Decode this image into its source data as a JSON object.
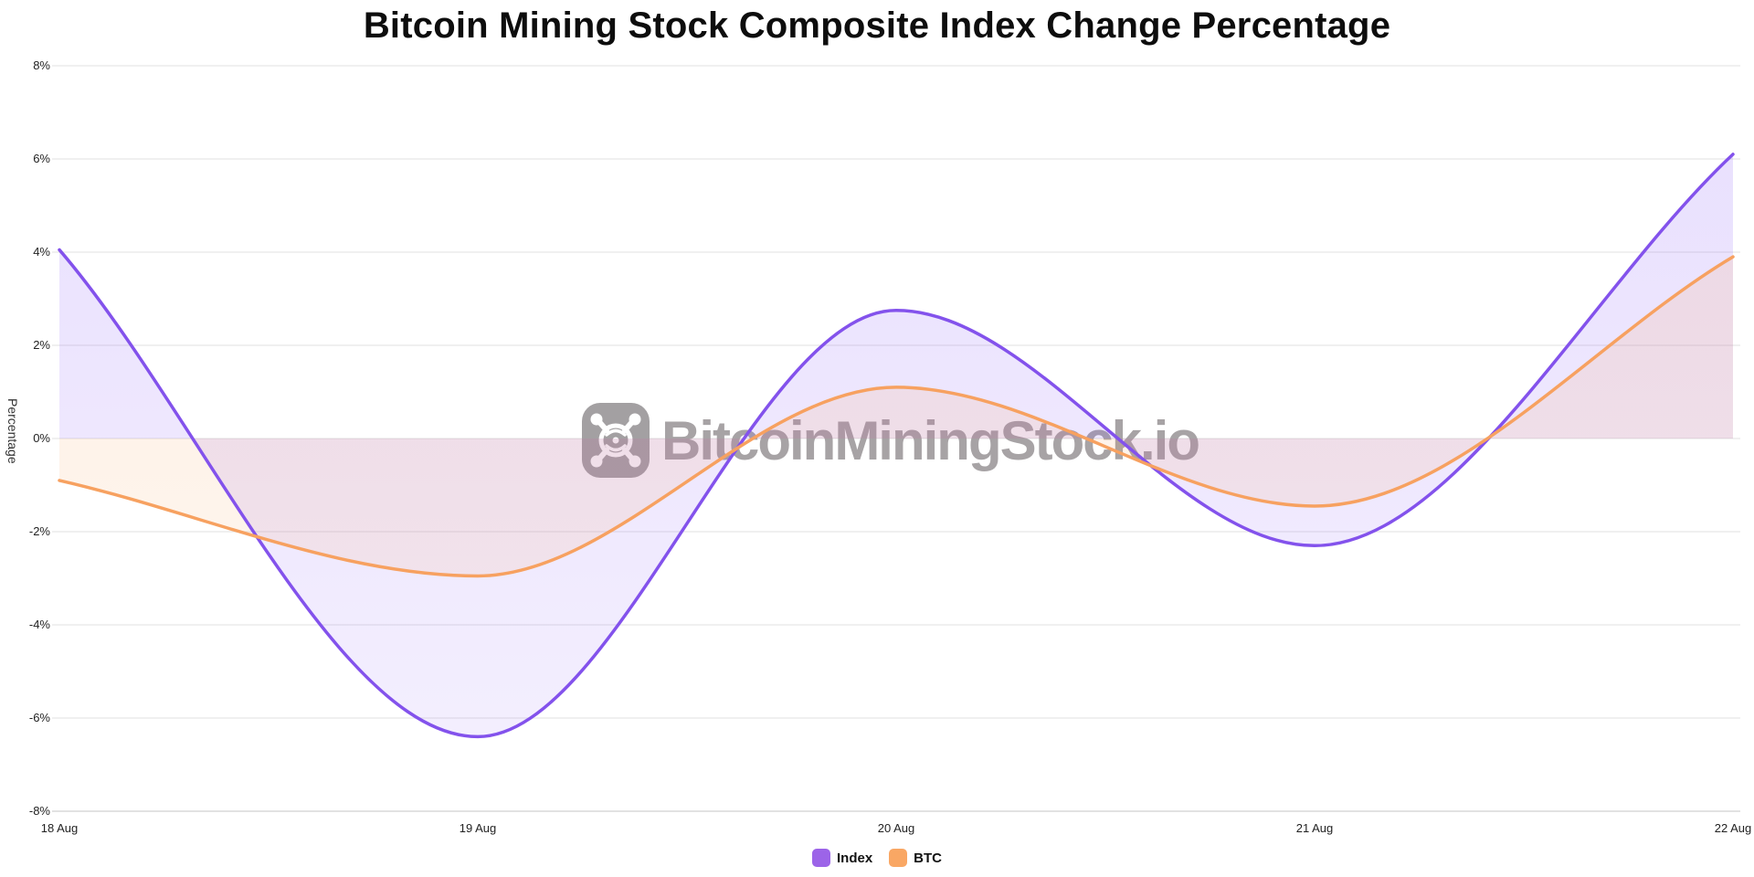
{
  "title": "Bitcoin Mining Stock Composite Index Change Percentage",
  "watermark": {
    "text": "BitcoinMiningStock.io",
    "logo_icon": "mining-fan-logo"
  },
  "chart_data": {
    "type": "line",
    "title": "Bitcoin Mining Stock Composite Index Change Percentage",
    "xlabel": "",
    "ylabel": "Percentage",
    "x_categories": [
      "18 Aug",
      "19 Aug",
      "20 Aug",
      "21 Aug",
      "22 Aug"
    ],
    "y_tick_labels": [
      "8%",
      "6%",
      "4%",
      "2%",
      "0%",
      "-2%",
      "-4%",
      "-6%",
      "-8%"
    ],
    "y_tick_values": [
      8,
      6,
      4,
      2,
      0,
      -2,
      -4,
      -6,
      -8
    ],
    "ylim": [
      -8,
      8
    ],
    "grid": true,
    "legend_position": "bottom",
    "curve": "monotone",
    "series": [
      {
        "name": "Index",
        "color": "#8352ec",
        "legend_color": "#9c64e8",
        "fill_color": "#8b5cf6",
        "values": [
          4.05,
          -6.4,
          2.75,
          -2.3,
          6.1
        ]
      },
      {
        "name": "BTC",
        "color": "#f7a160",
        "legend_color": "#f9a764",
        "fill_color": "#f89a4e",
        "values": [
          -0.9,
          -2.95,
          1.1,
          -1.45,
          3.9
        ]
      }
    ]
  }
}
